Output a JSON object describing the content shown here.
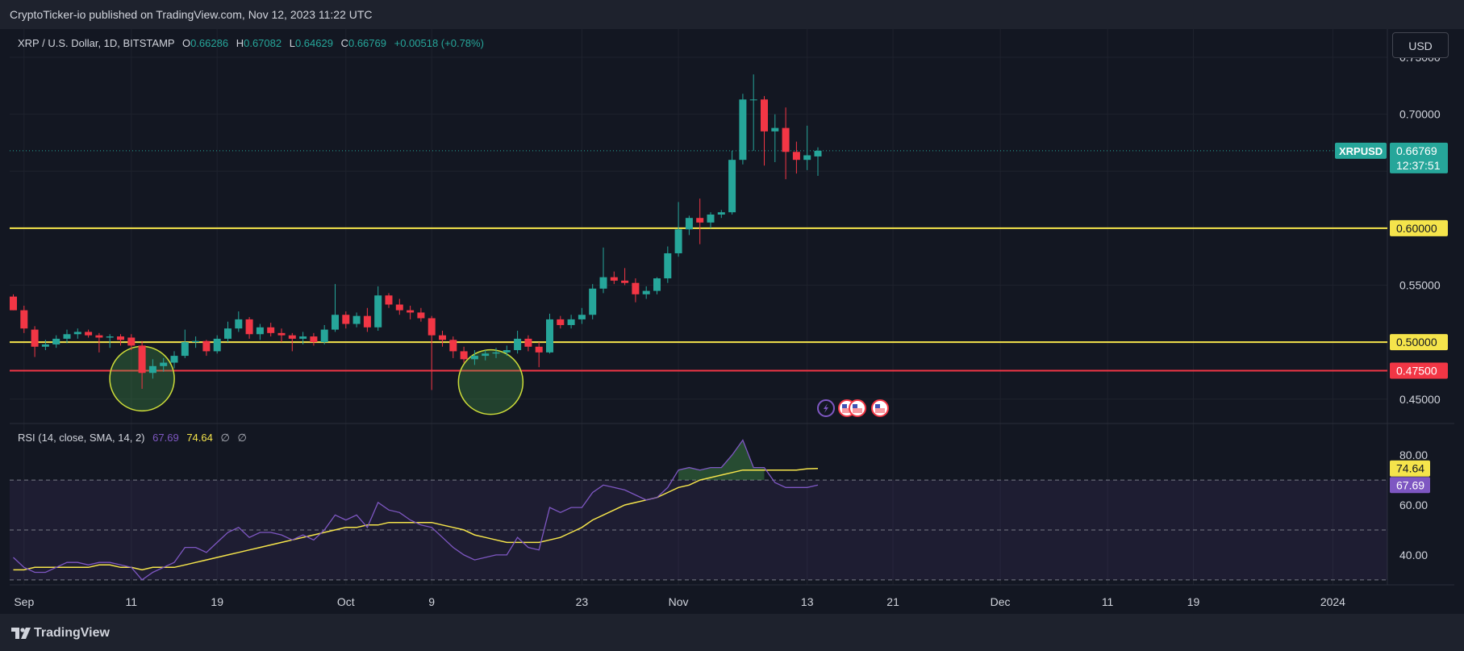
{
  "header": {
    "published": "CryptoTicker-io published on TradingView.com, Nov 12, 2023 11:22 UTC"
  },
  "legend": {
    "symbol": "XRP / U.S. Dollar, 1D, BITSTAMP",
    "o_label": "O",
    "o_value": "0.66286",
    "h_label": "H",
    "h_value": "0.67082",
    "l_label": "L",
    "l_value": "0.64629",
    "c_label": "C",
    "c_value": "0.66769",
    "change": "+0.00518 (+0.78%)"
  },
  "currency_button": "USD",
  "price_axis": {
    "ticks": [
      {
        "value": 0.75,
        "label": "0.75000"
      },
      {
        "value": 0.7,
        "label": "0.70000"
      },
      {
        "value": 0.55,
        "label": "0.55000"
      },
      {
        "value": 0.45,
        "label": "0.45000"
      }
    ],
    "symbol_tag": "XRPUSD",
    "last_price": "0.66769",
    "countdown": "12:37:51",
    "level_labels": [
      "0.60000",
      "0.50000",
      "0.47500"
    ]
  },
  "rsi_legend": {
    "name": "RSI (14, close, SMA, 14, 2)",
    "rsi_value": "67.69",
    "sma_value": "74.64",
    "empty1": "∅",
    "empty2": "∅"
  },
  "rsi_axis": {
    "ticks": [
      {
        "value": 80,
        "label": "80.00"
      },
      {
        "value": 60,
        "label": "60.00"
      },
      {
        "value": 40,
        "label": "40.00"
      }
    ],
    "sma_badge": "74.64",
    "rsi_badge": "67.69"
  },
  "time_axis": [
    {
      "day": 1,
      "label": "Sep"
    },
    {
      "day": 11,
      "label": "11"
    },
    {
      "day": 19,
      "label": "19"
    },
    {
      "day": 31,
      "label": "Oct"
    },
    {
      "day": 39,
      "label": "9"
    },
    {
      "day": 53,
      "label": "23"
    },
    {
      "day": 62,
      "label": "Nov"
    },
    {
      "day": 74,
      "label": "13"
    },
    {
      "day": 82,
      "label": "21"
    },
    {
      "day": 92,
      "label": "Dec"
    },
    {
      "day": 102,
      "label": "11"
    },
    {
      "day": 110,
      "label": "19"
    },
    {
      "day": 123,
      "label": "2024"
    }
  ],
  "footer": {
    "brand": "TradingView"
  },
  "colors": {
    "up": "#26a69a",
    "down": "#f23645",
    "support": "#f5e44b",
    "stop": "#f23645",
    "rsi": "#7e57c2",
    "rsi_sma": "#f5e44b",
    "bg": "#131722"
  },
  "chart_data": [
    {
      "type": "candlestick",
      "title": "XRP / U.S. Dollar, 1D, BITSTAMP",
      "x_unit": "day index (0 = Aug 31, 2023)",
      "ylim": [
        0.43,
        0.755
      ],
      "horizontal_levels": [
        {
          "value": 0.6,
          "color": "#f5e44b"
        },
        {
          "value": 0.5,
          "color": "#f5e44b"
        },
        {
          "value": 0.475,
          "color": "#f23645"
        }
      ],
      "highlight_circles": [
        {
          "day": 12,
          "price": 0.468
        },
        {
          "day": 44.5,
          "price": 0.465
        }
      ],
      "candles": [
        {
          "d": 0,
          "o": 0.54,
          "h": 0.542,
          "l": 0.528,
          "c": 0.528
        },
        {
          "d": 1,
          "o": 0.528,
          "h": 0.532,
          "l": 0.508,
          "c": 0.512
        },
        {
          "d": 2,
          "o": 0.511,
          "h": 0.514,
          "l": 0.487,
          "c": 0.496
        },
        {
          "d": 3,
          "o": 0.496,
          "h": 0.502,
          "l": 0.493,
          "c": 0.498
        },
        {
          "d": 4,
          "o": 0.498,
          "h": 0.506,
          "l": 0.495,
          "c": 0.503
        },
        {
          "d": 5,
          "o": 0.503,
          "h": 0.511,
          "l": 0.499,
          "c": 0.507
        },
        {
          "d": 6,
          "o": 0.507,
          "h": 0.512,
          "l": 0.503,
          "c": 0.509
        },
        {
          "d": 7,
          "o": 0.509,
          "h": 0.511,
          "l": 0.504,
          "c": 0.506
        },
        {
          "d": 8,
          "o": 0.506,
          "h": 0.508,
          "l": 0.491,
          "c": 0.504
        },
        {
          "d": 9,
          "o": 0.504,
          "h": 0.507,
          "l": 0.495,
          "c": 0.505
        },
        {
          "d": 10,
          "o": 0.505,
          "h": 0.507,
          "l": 0.497,
          "c": 0.502
        },
        {
          "d": 11,
          "o": 0.504,
          "h": 0.507,
          "l": 0.493,
          "c": 0.497
        },
        {
          "d": 12,
          "o": 0.497,
          "h": 0.501,
          "l": 0.459,
          "c": 0.473
        },
        {
          "d": 13,
          "o": 0.473,
          "h": 0.485,
          "l": 0.468,
          "c": 0.479
        },
        {
          "d": 14,
          "o": 0.479,
          "h": 0.486,
          "l": 0.474,
          "c": 0.482
        },
        {
          "d": 15,
          "o": 0.482,
          "h": 0.492,
          "l": 0.477,
          "c": 0.488
        },
        {
          "d": 16,
          "o": 0.488,
          "h": 0.511,
          "l": 0.486,
          "c": 0.5
        },
        {
          "d": 17,
          "o": 0.5,
          "h": 0.505,
          "l": 0.495,
          "c": 0.501
        },
        {
          "d": 18,
          "o": 0.501,
          "h": 0.502,
          "l": 0.488,
          "c": 0.492
        },
        {
          "d": 19,
          "o": 0.492,
          "h": 0.506,
          "l": 0.49,
          "c": 0.503
        },
        {
          "d": 20,
          "o": 0.503,
          "h": 0.518,
          "l": 0.5,
          "c": 0.512
        },
        {
          "d": 21,
          "o": 0.512,
          "h": 0.527,
          "l": 0.509,
          "c": 0.52
        },
        {
          "d": 22,
          "o": 0.52,
          "h": 0.522,
          "l": 0.503,
          "c": 0.507
        },
        {
          "d": 23,
          "o": 0.507,
          "h": 0.516,
          "l": 0.502,
          "c": 0.513
        },
        {
          "d": 24,
          "o": 0.513,
          "h": 0.517,
          "l": 0.505,
          "c": 0.508
        },
        {
          "d": 25,
          "o": 0.508,
          "h": 0.512,
          "l": 0.5,
          "c": 0.506
        },
        {
          "d": 26,
          "o": 0.506,
          "h": 0.508,
          "l": 0.492,
          "c": 0.503
        },
        {
          "d": 27,
          "o": 0.503,
          "h": 0.509,
          "l": 0.498,
          "c": 0.505
        },
        {
          "d": 28,
          "o": 0.505,
          "h": 0.508,
          "l": 0.497,
          "c": 0.5
        },
        {
          "d": 29,
          "o": 0.5,
          "h": 0.515,
          "l": 0.498,
          "c": 0.511
        },
        {
          "d": 30,
          "o": 0.511,
          "h": 0.551,
          "l": 0.509,
          "c": 0.524
        },
        {
          "d": 31,
          "o": 0.524,
          "h": 0.527,
          "l": 0.512,
          "c": 0.516
        },
        {
          "d": 32,
          "o": 0.516,
          "h": 0.526,
          "l": 0.513,
          "c": 0.523
        },
        {
          "d": 33,
          "o": 0.523,
          "h": 0.53,
          "l": 0.509,
          "c": 0.513
        },
        {
          "d": 34,
          "o": 0.513,
          "h": 0.549,
          "l": 0.51,
          "c": 0.541
        },
        {
          "d": 35,
          "o": 0.541,
          "h": 0.543,
          "l": 0.53,
          "c": 0.533
        },
        {
          "d": 36,
          "o": 0.533,
          "h": 0.538,
          "l": 0.524,
          "c": 0.528
        },
        {
          "d": 37,
          "o": 0.528,
          "h": 0.532,
          "l": 0.52,
          "c": 0.526
        },
        {
          "d": 38,
          "o": 0.526,
          "h": 0.53,
          "l": 0.518,
          "c": 0.521
        },
        {
          "d": 39,
          "o": 0.521,
          "h": 0.523,
          "l": 0.458,
          "c": 0.506
        },
        {
          "d": 40,
          "o": 0.506,
          "h": 0.51,
          "l": 0.496,
          "c": 0.502
        },
        {
          "d": 41,
          "o": 0.502,
          "h": 0.505,
          "l": 0.486,
          "c": 0.492
        },
        {
          "d": 42,
          "o": 0.492,
          "h": 0.496,
          "l": 0.482,
          "c": 0.485
        },
        {
          "d": 43,
          "o": 0.485,
          "h": 0.493,
          "l": 0.48,
          "c": 0.488
        },
        {
          "d": 44,
          "o": 0.488,
          "h": 0.493,
          "l": 0.484,
          "c": 0.49
        },
        {
          "d": 45,
          "o": 0.49,
          "h": 0.495,
          "l": 0.486,
          "c": 0.491
        },
        {
          "d": 46,
          "o": 0.491,
          "h": 0.497,
          "l": 0.488,
          "c": 0.493
        },
        {
          "d": 47,
          "o": 0.493,
          "h": 0.51,
          "l": 0.49,
          "c": 0.503
        },
        {
          "d": 48,
          "o": 0.503,
          "h": 0.506,
          "l": 0.492,
          "c": 0.496
        },
        {
          "d": 49,
          "o": 0.496,
          "h": 0.5,
          "l": 0.478,
          "c": 0.491
        },
        {
          "d": 50,
          "o": 0.491,
          "h": 0.525,
          "l": 0.49,
          "c": 0.52
        },
        {
          "d": 51,
          "o": 0.52,
          "h": 0.523,
          "l": 0.512,
          "c": 0.515
        },
        {
          "d": 52,
          "o": 0.515,
          "h": 0.524,
          "l": 0.512,
          "c": 0.52
        },
        {
          "d": 53,
          "o": 0.52,
          "h": 0.53,
          "l": 0.516,
          "c": 0.524
        },
        {
          "d": 54,
          "o": 0.524,
          "h": 0.551,
          "l": 0.52,
          "c": 0.547
        },
        {
          "d": 55,
          "o": 0.547,
          "h": 0.583,
          "l": 0.543,
          "c": 0.557
        },
        {
          "d": 56,
          "o": 0.557,
          "h": 0.562,
          "l": 0.551,
          "c": 0.554
        },
        {
          "d": 57,
          "o": 0.554,
          "h": 0.565,
          "l": 0.55,
          "c": 0.552
        },
        {
          "d": 58,
          "o": 0.552,
          "h": 0.556,
          "l": 0.535,
          "c": 0.542
        },
        {
          "d": 59,
          "o": 0.542,
          "h": 0.549,
          "l": 0.538,
          "c": 0.545
        },
        {
          "d": 60,
          "o": 0.545,
          "h": 0.557,
          "l": 0.542,
          "c": 0.556
        },
        {
          "d": 61,
          "o": 0.556,
          "h": 0.584,
          "l": 0.552,
          "c": 0.578
        },
        {
          "d": 62,
          "o": 0.578,
          "h": 0.623,
          "l": 0.575,
          "c": 0.599
        },
        {
          "d": 63,
          "o": 0.599,
          "h": 0.611,
          "l": 0.594,
          "c": 0.609
        },
        {
          "d": 64,
          "o": 0.609,
          "h": 0.626,
          "l": 0.586,
          "c": 0.605
        },
        {
          "d": 65,
          "o": 0.605,
          "h": 0.614,
          "l": 0.6,
          "c": 0.612
        },
        {
          "d": 66,
          "o": 0.612,
          "h": 0.616,
          "l": 0.609,
          "c": 0.614
        },
        {
          "d": 67,
          "o": 0.614,
          "h": 0.668,
          "l": 0.612,
          "c": 0.66
        },
        {
          "d": 68,
          "o": 0.66,
          "h": 0.718,
          "l": 0.656,
          "c": 0.713
        },
        {
          "d": 69,
          "o": 0.713,
          "h": 0.735,
          "l": 0.668,
          "c": 0.713
        },
        {
          "d": 70,
          "o": 0.713,
          "h": 0.716,
          "l": 0.655,
          "c": 0.685
        },
        {
          "d": 71,
          "o": 0.685,
          "h": 0.7,
          "l": 0.658,
          "c": 0.688
        },
        {
          "d": 72,
          "o": 0.688,
          "h": 0.706,
          "l": 0.643,
          "c": 0.667
        },
        {
          "d": 73,
          "o": 0.667,
          "h": 0.676,
          "l": 0.648,
          "c": 0.66
        },
        {
          "d": 74,
          "o": 0.66,
          "h": 0.69,
          "l": 0.651,
          "c": 0.664
        },
        {
          "d": 75,
          "o": 0.663,
          "h": 0.671,
          "l": 0.646,
          "c": 0.668
        }
      ]
    },
    {
      "type": "line",
      "title": "RSI (14, close, SMA, 14, 2)",
      "ylim": [
        28,
        92
      ],
      "reference_lines": [
        70,
        50,
        30
      ],
      "series": [
        {
          "name": "RSI",
          "x_start": 0,
          "values": [
            39,
            35,
            33,
            33,
            35,
            37,
            37,
            36,
            37,
            37,
            36,
            35,
            30,
            33,
            35,
            37,
            43,
            43,
            41,
            45,
            49,
            51,
            47,
            49,
            49,
            48,
            46,
            48,
            46,
            50,
            56,
            54,
            56,
            51,
            61,
            58,
            57,
            54,
            52,
            51,
            47,
            43,
            40,
            38,
            39,
            40,
            40,
            47,
            43,
            42,
            59,
            57,
            59,
            59,
            65,
            68,
            67,
            66,
            64,
            62,
            63,
            67,
            74,
            75,
            74,
            75,
            75,
            80,
            86,
            75,
            75,
            69,
            67,
            67,
            67,
            68
          ]
        },
        {
          "name": "SMA",
          "x_start": 0,
          "values": [
            34,
            34,
            35,
            35,
            35,
            35,
            35,
            35,
            36,
            36,
            35,
            35,
            34,
            35,
            35,
            35,
            36,
            37,
            38,
            39,
            40,
            41,
            42,
            43,
            44,
            45,
            46,
            47,
            48,
            49,
            50,
            51,
            51,
            52,
            52,
            53,
            53,
            53,
            53,
            53,
            52,
            51,
            50,
            48,
            47,
            46,
            45,
            45,
            45,
            45,
            46,
            47,
            49,
            51,
            54,
            56,
            58,
            60,
            61,
            62,
            63,
            65,
            67,
            68,
            70,
            71,
            72,
            73,
            74,
            74,
            74,
            74,
            74,
            74,
            74.5,
            74.64
          ]
        }
      ]
    }
  ]
}
